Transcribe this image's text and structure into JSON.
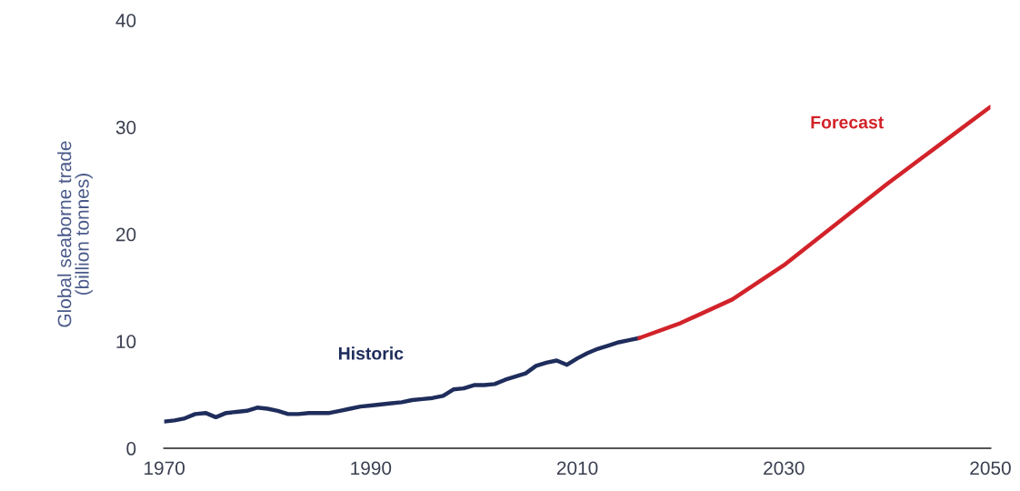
{
  "chart_data": {
    "type": "line",
    "ylabel": "Global seaborne trade\n(billion tonnes)",
    "xlim": [
      1970,
      2050
    ],
    "xticks": [
      1970,
      1990,
      2010,
      2030,
      2050
    ],
    "ylim": [
      0,
      40
    ],
    "yticks": [
      0,
      10,
      20,
      30,
      40
    ],
    "grid": false,
    "legend": false,
    "series": [
      {
        "name": "Historic",
        "color": "#1f2d5c",
        "x": [
          1970,
          1971,
          1972,
          1973,
          1974,
          1975,
          1976,
          1977,
          1978,
          1979,
          1980,
          1981,
          1982,
          1983,
          1984,
          1985,
          1986,
          1987,
          1988,
          1989,
          1990,
          1991,
          1992,
          1993,
          1994,
          1995,
          1996,
          1997,
          1998,
          1999,
          2000,
          2001,
          2002,
          2003,
          2004,
          2005,
          2006,
          2007,
          2008,
          2009,
          2010,
          2011,
          2012,
          2013,
          2014,
          2015,
          2016
        ],
        "values": [
          2.5,
          2.6,
          2.8,
          3.2,
          3.3,
          2.9,
          3.3,
          3.4,
          3.5,
          3.8,
          3.7,
          3.5,
          3.2,
          3.2,
          3.3,
          3.3,
          3.3,
          3.5,
          3.7,
          3.9,
          4.0,
          4.1,
          4.2,
          4.3,
          4.5,
          4.6,
          4.7,
          4.9,
          5.5,
          5.6,
          5.9,
          5.9,
          6.0,
          6.4,
          6.7,
          7.0,
          7.7,
          8.0,
          8.2,
          7.8,
          8.4,
          8.9,
          9.3,
          9.6,
          9.9,
          10.1,
          10.3
        ]
      },
      {
        "name": "Forecast",
        "color": "#d2232a",
        "x": [
          2016,
          2020,
          2025,
          2030,
          2035,
          2040,
          2045,
          2050
        ],
        "values": [
          10.3,
          11.7,
          13.9,
          17.1,
          20.9,
          24.7,
          28.3,
          31.9
        ]
      }
    ]
  }
}
